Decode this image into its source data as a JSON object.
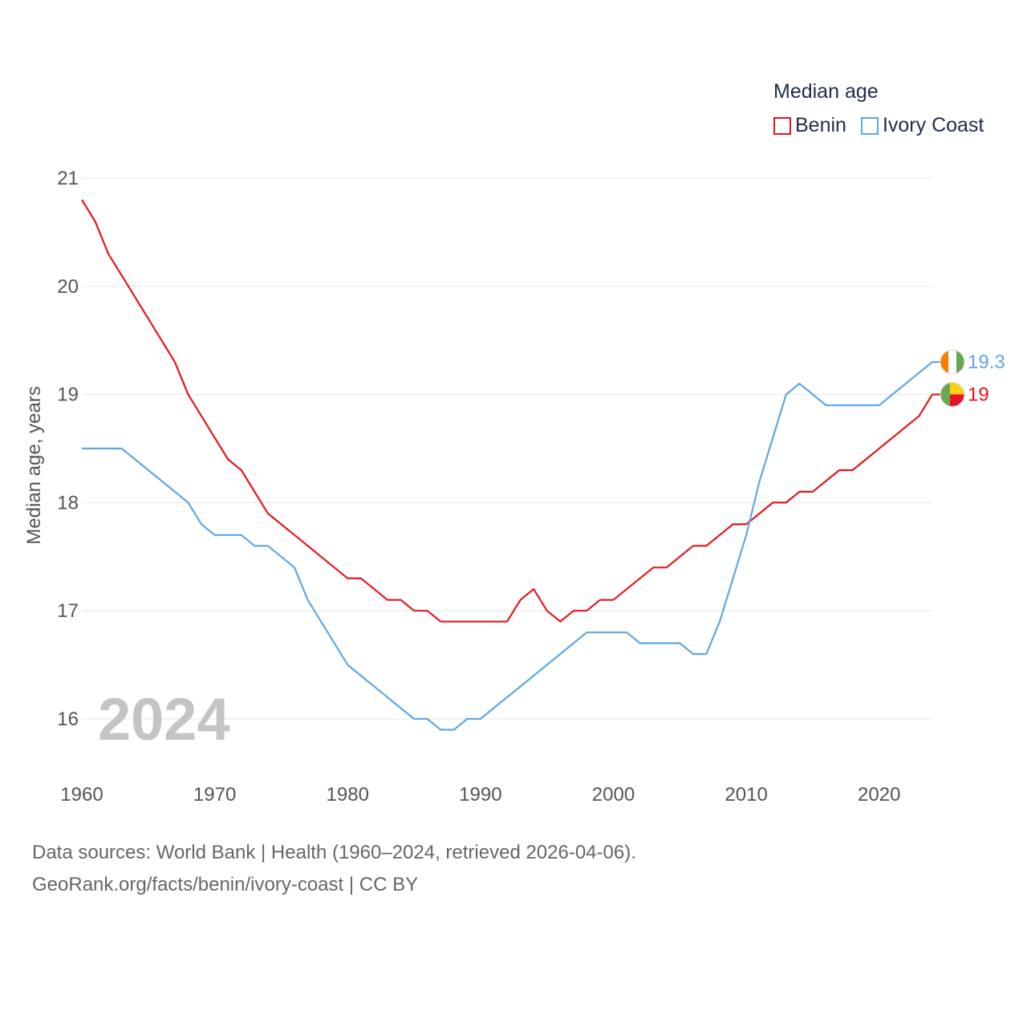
{
  "legend": {
    "title": "Median age",
    "items": [
      {
        "name": "Benin",
        "color": "#e8141c"
      },
      {
        "name": "Ivory Coast",
        "color": "#5fa6e4"
      }
    ]
  },
  "source": {
    "line1": "Data sources: World Bank | Health (1960–2024, retrieved 2026-04-06).",
    "line2": "GeoRank.org/facts/benin/ivory-coast | CC BY"
  },
  "chart_data": {
    "type": "line",
    "title": "",
    "ylabel": "Median age, years",
    "xlabel": "",
    "year_label": "2024",
    "xlim": [
      1960,
      2024
    ],
    "ylim": [
      15.5,
      21.1
    ],
    "x_ticks": [
      1960,
      1970,
      1980,
      1990,
      2000,
      2010,
      2020
    ],
    "y_ticks": [
      16,
      17,
      18,
      19,
      20,
      21
    ],
    "x": [
      1960,
      1961,
      1962,
      1963,
      1964,
      1965,
      1966,
      1967,
      1968,
      1969,
      1970,
      1971,
      1972,
      1973,
      1974,
      1975,
      1976,
      1977,
      1978,
      1979,
      1980,
      1981,
      1982,
      1983,
      1984,
      1985,
      1986,
      1987,
      1988,
      1989,
      1990,
      1991,
      1992,
      1993,
      1994,
      1995,
      1996,
      1997,
      1998,
      1999,
      2000,
      2001,
      2002,
      2003,
      2004,
      2005,
      2006,
      2007,
      2008,
      2009,
      2010,
      2011,
      2012,
      2013,
      2014,
      2015,
      2016,
      2017,
      2018,
      2019,
      2020,
      2021,
      2022,
      2023,
      2024
    ],
    "series": [
      {
        "name": "Benin",
        "color": "#e8141c",
        "end_label": "19",
        "flag_icon": "benin-flag-icon",
        "values": [
          20.8,
          20.6,
          20.3,
          20.1,
          19.9,
          19.7,
          19.5,
          19.3,
          19.0,
          18.8,
          18.6,
          18.4,
          18.3,
          18.1,
          17.9,
          17.8,
          17.7,
          17.6,
          17.5,
          17.4,
          17.3,
          17.3,
          17.2,
          17.1,
          17.1,
          17.0,
          17.0,
          16.9,
          16.9,
          16.9,
          16.9,
          16.9,
          16.9,
          17.1,
          17.2,
          17.0,
          16.9,
          17.0,
          17.0,
          17.1,
          17.1,
          17.2,
          17.3,
          17.4,
          17.4,
          17.5,
          17.6,
          17.6,
          17.7,
          17.8,
          17.8,
          17.9,
          18.0,
          18.0,
          18.1,
          18.1,
          18.2,
          18.3,
          18.3,
          18.4,
          18.5,
          18.6,
          18.7,
          18.8,
          19.0
        ]
      },
      {
        "name": "Ivory Coast",
        "color": "#5fa6e4",
        "end_label": "19.3",
        "flag_icon": "ivory-coast-flag-icon",
        "values": [
          18.5,
          18.5,
          18.5,
          18.5,
          18.4,
          18.3,
          18.2,
          18.1,
          18.0,
          17.8,
          17.7,
          17.7,
          17.7,
          17.6,
          17.6,
          17.5,
          17.4,
          17.1,
          16.9,
          16.7,
          16.5,
          16.4,
          16.3,
          16.2,
          16.1,
          16.0,
          16.0,
          15.9,
          15.9,
          16.0,
          16.0,
          16.1,
          16.2,
          16.3,
          16.4,
          16.5,
          16.6,
          16.7,
          16.8,
          16.8,
          16.8,
          16.8,
          16.7,
          16.7,
          16.7,
          16.7,
          16.6,
          16.6,
          16.9,
          17.3,
          17.7,
          18.2,
          18.6,
          19.0,
          19.1,
          19.0,
          18.9,
          18.9,
          18.9,
          18.9,
          18.9,
          19.0,
          19.1,
          19.2,
          19.3
        ]
      }
    ]
  }
}
